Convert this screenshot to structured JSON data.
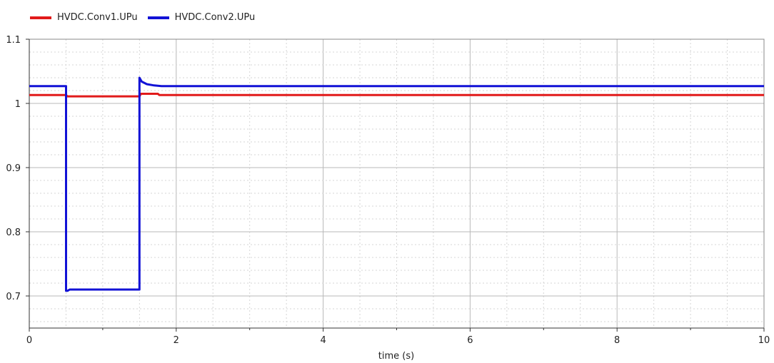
{
  "chart_data": {
    "type": "line",
    "xlabel": "time (s)",
    "xlim": [
      0,
      10
    ],
    "ylim": [
      0.65,
      1.1
    ],
    "x_ticks": [
      "0",
      "2",
      "4",
      "6",
      "8",
      "10"
    ],
    "y_ticks": [
      "0.7",
      "0.8",
      "0.9",
      "1",
      "1.1"
    ],
    "grid": true,
    "legend_position": "top-left",
    "series": [
      {
        "name": "HVDC.Conv1.UPu",
        "color": "#e11a1a",
        "x": [
          0,
          0.5,
          0.52,
          1.0,
          1.5,
          1.52,
          1.75,
          1.77,
          10
        ],
        "y": [
          1.013,
          1.013,
          1.011,
          1.011,
          1.011,
          1.015,
          1.015,
          1.013,
          1.013
        ]
      },
      {
        "name": "HVDC.Conv2.UPu",
        "color": "#1212d6",
        "x": [
          0,
          0.5,
          0.5,
          0.52,
          0.55,
          1.0,
          1.5,
          1.5,
          1.53,
          1.6,
          1.7,
          1.8,
          2.0,
          10
        ],
        "y": [
          1.027,
          1.027,
          0.708,
          0.708,
          0.71,
          0.71,
          0.71,
          1.04,
          1.034,
          1.03,
          1.028,
          1.027,
          1.027,
          1.027
        ]
      }
    ]
  }
}
